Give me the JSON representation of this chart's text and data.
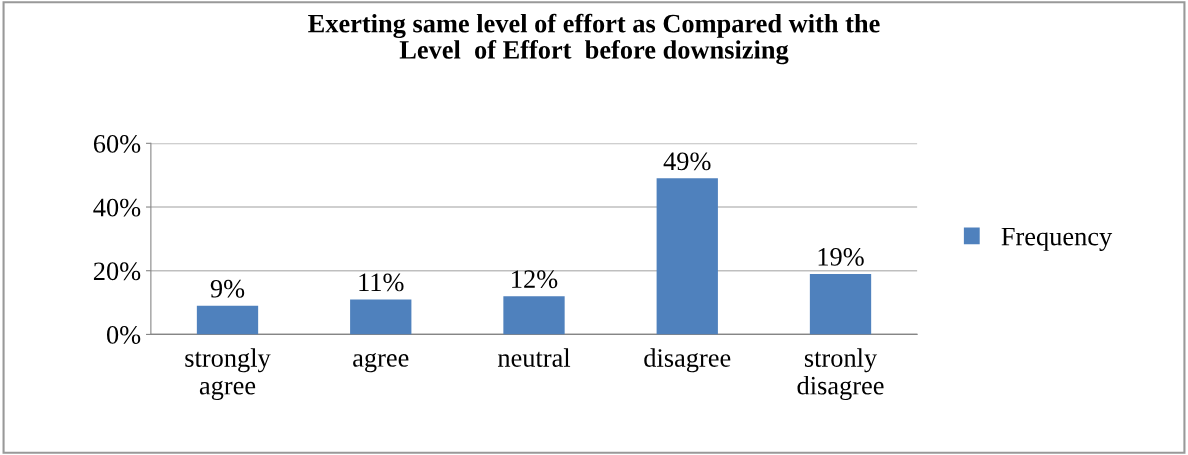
{
  "chart_data": {
    "type": "bar",
    "title": "Exerting same level of effort as Compared with the\nLevel  of Effort  before downsizing",
    "categories": [
      "strongly agree",
      "agree",
      "neutral",
      "disagree",
      "stronly disagree"
    ],
    "series": [
      {
        "name": "Frequency",
        "color": "#4f81bd",
        "values": [
          9,
          11,
          12,
          49,
          19
        ],
        "value_labels": [
          "9%",
          "11%",
          "12%",
          "49%",
          "19%"
        ]
      }
    ],
    "ylim": [
      0,
      60
    ],
    "yticks": [
      {
        "value": 0,
        "label": "0%"
      },
      {
        "value": 20,
        "label": "20%"
      },
      {
        "value": 40,
        "label": "40%"
      },
      {
        "value": 60,
        "label": "60%"
      }
    ],
    "grid": "y",
    "legend": "right"
  }
}
